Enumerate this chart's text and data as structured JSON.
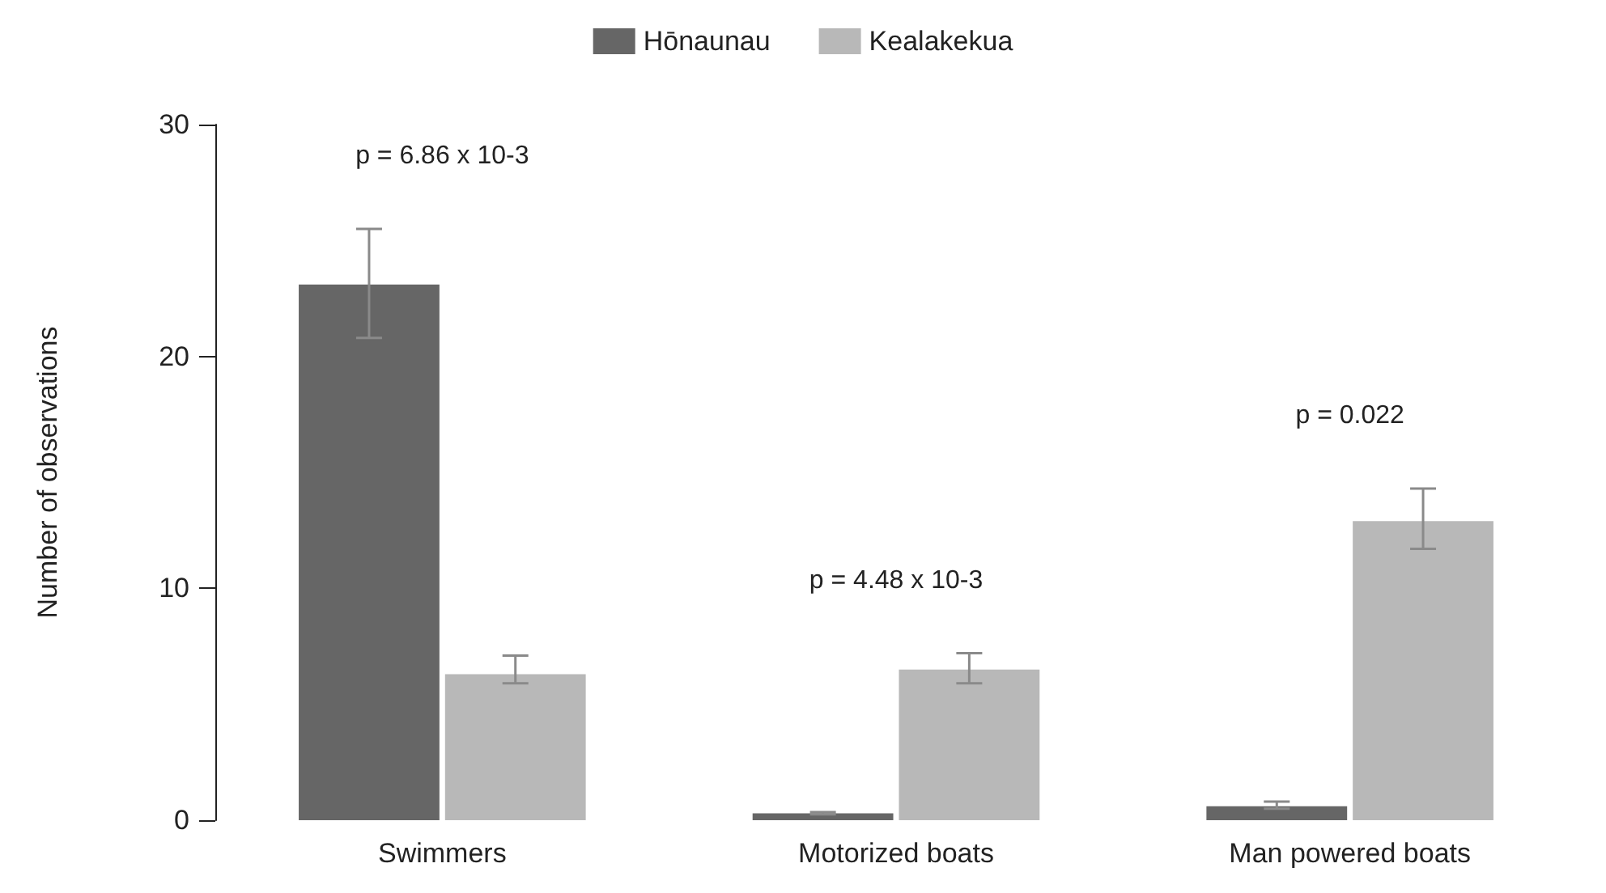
{
  "chart_data": {
    "type": "bar",
    "ylabel": "Number of observations",
    "categories": [
      "Swimmers",
      "Motorized boats",
      "Man powered boats"
    ],
    "series": [
      {
        "name": "Hōnaunau",
        "color": "#666666",
        "values": [
          23.1,
          0.3,
          0.6
        ],
        "errors": [
          [
            20.8,
            25.5
          ],
          [
            0.25,
            0.35
          ],
          [
            0.5,
            0.8
          ]
        ]
      },
      {
        "name": "Kealakekua",
        "color": "#b8b8b8",
        "values": [
          6.3,
          6.5,
          12.9
        ],
        "errors": [
          [
            5.9,
            7.1
          ],
          [
            5.9,
            7.2
          ],
          [
            11.7,
            14.3
          ]
        ]
      }
    ],
    "ylim": [
      0,
      30
    ],
    "yticks": [
      0,
      10,
      20,
      30
    ],
    "grid": false,
    "legend": "top",
    "annotations": [
      "p = 6.86 x 10-3",
      "p = 4.48 x 10-3",
      "p = 0.022"
    ]
  }
}
